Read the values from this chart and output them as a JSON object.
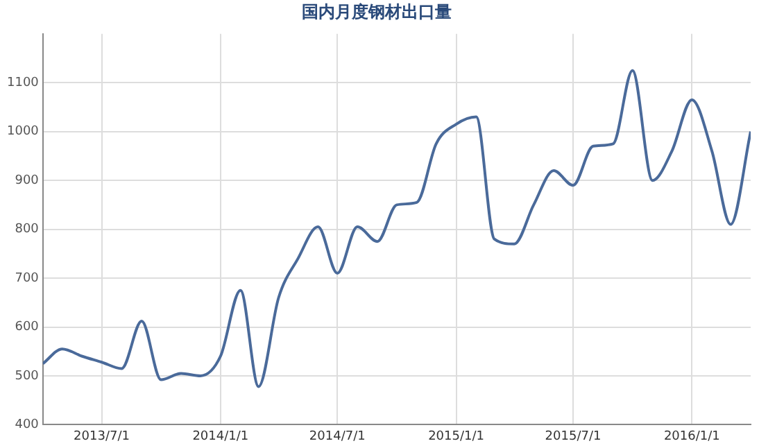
{
  "chart_data": {
    "type": "line",
    "title": "国内月度钢材出口量",
    "x": [
      "2013-04",
      "2013-05",
      "2013-06",
      "2013-07",
      "2013-08",
      "2013-09",
      "2013-10",
      "2013-11",
      "2013-12",
      "2014-01",
      "2014-02",
      "2014-03",
      "2014-04",
      "2014-05",
      "2014-06",
      "2014-07",
      "2014-08",
      "2014-09",
      "2014-10",
      "2014-11",
      "2014-12",
      "2015-01",
      "2015-02",
      "2015-03",
      "2015-04",
      "2015-05",
      "2015-06",
      "2015-07",
      "2015-08",
      "2015-09",
      "2015-10",
      "2015-11",
      "2015-12",
      "2016-01",
      "2016-02",
      "2016-03",
      "2016-04"
    ],
    "series": [
      {
        "color": "#4a6a9a",
        "values": [
          525,
          555,
          540,
          528,
          515,
          612,
          492,
          505,
          500,
          540,
          675,
          478,
          660,
          740,
          805,
          710,
          805,
          775,
          850,
          855,
          975,
          1015,
          1030,
          780,
          770,
          850,
          920,
          890,
          970,
          975,
          1125,
          900,
          960,
          1065,
          960,
          810,
          1000
        ]
      }
    ],
    "xlim": [
      "2013-04",
      "2016-04"
    ],
    "xticks": [
      {
        "value": "2013-07-01",
        "label": "2013/7/1"
      },
      {
        "value": "2014-01-01",
        "label": "2014/1/1"
      },
      {
        "value": "2014-07-01",
        "label": "2014/7/1"
      },
      {
        "value": "2015-01-01",
        "label": "2015/1/1"
      },
      {
        "value": "2015-07-01",
        "label": "2015/7/1"
      },
      {
        "value": "2016-01-01",
        "label": "2016/1/1"
      }
    ],
    "ylim": [
      400,
      1200
    ],
    "yticks": [
      400,
      500,
      600,
      700,
      800,
      900,
      1000,
      1100
    ],
    "grid": true,
    "marker": "none",
    "line_style": "solid"
  }
}
